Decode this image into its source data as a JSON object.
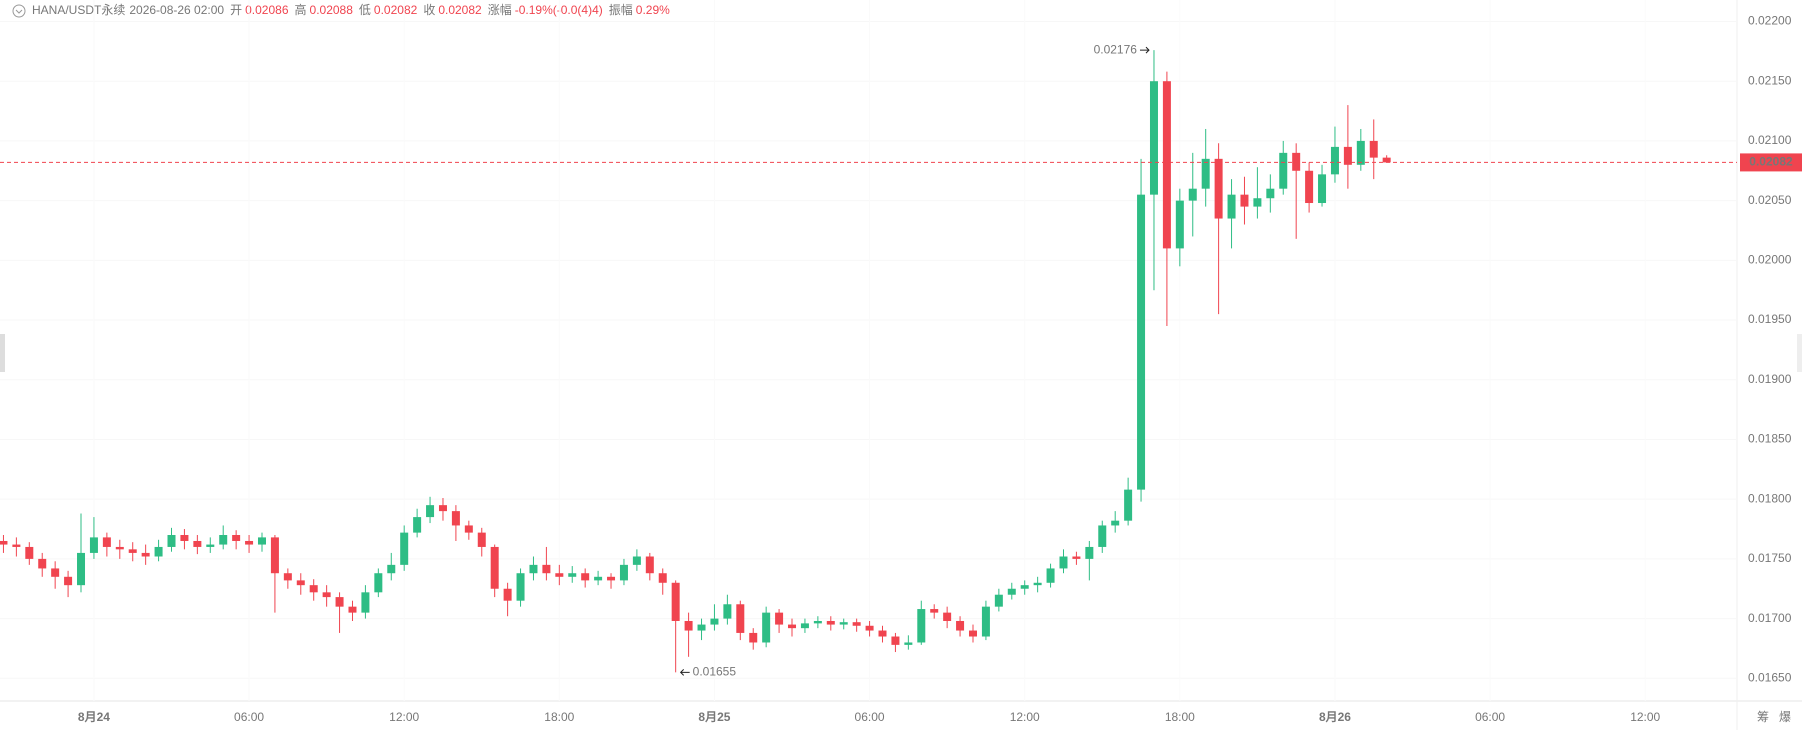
{
  "chart_data": {
    "type": "candlestick",
    "header": {
      "symbol": "HANA/USDT永续",
      "time": "2026-08-26 02:00",
      "fields": [
        {
          "label": "开",
          "value": "0.02086"
        },
        {
          "label": "高",
          "value": "0.02088"
        },
        {
          "label": "低",
          "value": "0.02082"
        },
        {
          "label": "收",
          "value": "0.02082"
        },
        {
          "label": "涨幅",
          "value": "-0.19%(-0.0(4)4)"
        },
        {
          "label": "振幅",
          "value": "0.29%"
        }
      ]
    },
    "high_label": "0.02176",
    "low_label": "0.01655",
    "last_price_label": "0.02082",
    "corner_icons": [
      "筹",
      "爆"
    ],
    "up_color": "#2ebd85",
    "down_color": "#f0444f",
    "xlim": [
      "2026-08-23 20:22",
      "2026-08-26 15:33"
    ],
    "xticks": [
      {
        "value": "2026-08-24 00:00",
        "label": "8月24"
      },
      {
        "value": "2026-08-24 06:00",
        "label": "06:00"
      },
      {
        "value": "2026-08-24 12:00",
        "label": "12:00"
      },
      {
        "value": "2026-08-24 18:00",
        "label": "18:00"
      },
      {
        "value": "2026-08-25 00:00",
        "label": "8月25"
      },
      {
        "value": "2026-08-25 06:00",
        "label": "06:00"
      },
      {
        "value": "2026-08-25 12:00",
        "label": "12:00"
      },
      {
        "value": "2026-08-25 18:00",
        "label": "18:00"
      },
      {
        "value": "2026-08-26 00:00",
        "label": "8月26"
      },
      {
        "value": "2026-08-26 06:00",
        "label": "06:00"
      },
      {
        "value": "2026-08-26 12:00",
        "label": "12:00"
      }
    ],
    "ylim": [
      0.01631,
      0.02218
    ],
    "yticks": [
      {
        "value": 0.0165,
        "label": "0.01650"
      },
      {
        "value": 0.017,
        "label": "0.01700"
      },
      {
        "value": 0.0175,
        "label": "0.01750"
      },
      {
        "value": 0.018,
        "label": "0.01800"
      },
      {
        "value": 0.0185,
        "label": "0.01850"
      },
      {
        "value": 0.019,
        "label": "0.01900"
      },
      {
        "value": 0.0195,
        "label": "0.01950"
      },
      {
        "value": 0.02,
        "label": "0.02000"
      },
      {
        "value": 0.0205,
        "label": "0.02050"
      },
      {
        "value": 0.021,
        "label": "0.02100"
      },
      {
        "value": 0.0215,
        "label": "0.02150"
      },
      {
        "value": 0.022,
        "label": "0.02200"
      }
    ],
    "grid": true,
    "x": [
      "2026-08-23 20:30",
      "2026-08-23 21:00",
      "2026-08-23 21:30",
      "2026-08-23 22:00",
      "2026-08-23 22:30",
      "2026-08-23 23:00",
      "2026-08-23 23:30",
      "2026-08-24 00:00",
      "2026-08-24 00:30",
      "2026-08-24 01:00",
      "2026-08-24 01:30",
      "2026-08-24 02:00",
      "2026-08-24 02:30",
      "2026-08-24 03:00",
      "2026-08-24 03:30",
      "2026-08-24 04:00",
      "2026-08-24 04:30",
      "2026-08-24 05:00",
      "2026-08-24 05:30",
      "2026-08-24 06:00",
      "2026-08-24 06:30",
      "2026-08-24 07:00",
      "2026-08-24 07:30",
      "2026-08-24 08:00",
      "2026-08-24 08:30",
      "2026-08-24 09:00",
      "2026-08-24 09:30",
      "2026-08-24 10:00",
      "2026-08-24 10:30",
      "2026-08-24 11:00",
      "2026-08-24 11:30",
      "2026-08-24 12:00",
      "2026-08-24 12:30",
      "2026-08-24 13:00",
      "2026-08-24 13:30",
      "2026-08-24 14:00",
      "2026-08-24 14:30",
      "2026-08-24 15:00",
      "2026-08-24 15:30",
      "2026-08-24 16:00",
      "2026-08-24 16:30",
      "2026-08-24 17:00",
      "2026-08-24 17:30",
      "2026-08-24 18:00",
      "2026-08-24 18:30",
      "2026-08-24 19:00",
      "2026-08-24 19:30",
      "2026-08-24 20:00",
      "2026-08-24 20:30",
      "2026-08-24 21:00",
      "2026-08-24 21:30",
      "2026-08-24 22:00",
      "2026-08-24 22:30",
      "2026-08-24 23:00",
      "2026-08-24 23:30",
      "2026-08-25 00:00",
      "2026-08-25 00:30",
      "2026-08-25 01:00",
      "2026-08-25 01:30",
      "2026-08-25 02:00",
      "2026-08-25 02:30",
      "2026-08-25 03:00",
      "2026-08-25 03:30",
      "2026-08-25 04:00",
      "2026-08-25 04:30",
      "2026-08-25 05:00",
      "2026-08-25 05:30",
      "2026-08-25 06:00",
      "2026-08-25 06:30",
      "2026-08-25 07:00",
      "2026-08-25 07:30",
      "2026-08-25 08:00",
      "2026-08-25 08:30",
      "2026-08-25 09:00",
      "2026-08-25 09:30",
      "2026-08-25 10:00",
      "2026-08-25 10:30",
      "2026-08-25 11:00",
      "2026-08-25 11:30",
      "2026-08-25 12:00",
      "2026-08-25 12:30",
      "2026-08-25 13:00",
      "2026-08-25 13:30",
      "2026-08-25 14:00",
      "2026-08-25 14:30",
      "2026-08-25 15:00",
      "2026-08-25 15:30",
      "2026-08-25 16:00",
      "2026-08-25 16:30",
      "2026-08-25 17:00",
      "2026-08-25 17:30",
      "2026-08-25 18:00",
      "2026-08-25 18:30",
      "2026-08-25 19:00",
      "2026-08-25 19:30",
      "2026-08-25 20:00",
      "2026-08-25 20:30",
      "2026-08-25 21:00",
      "2026-08-25 21:30",
      "2026-08-25 22:00",
      "2026-08-25 22:30",
      "2026-08-25 23:00",
      "2026-08-25 23:30",
      "2026-08-26 00:00",
      "2026-08-26 00:30",
      "2026-08-26 01:00",
      "2026-08-26 01:30",
      "2026-08-26 02:00"
    ],
    "open": [
      0.01765,
      0.01762,
      0.0176,
      0.0175,
      0.01742,
      0.01735,
      0.01728,
      0.01755,
      0.01768,
      0.0176,
      0.01758,
      0.01755,
      0.01752,
      0.0176,
      0.0177,
      0.01765,
      0.0176,
      0.01762,
      0.0177,
      0.01765,
      0.01762,
      0.01768,
      0.01738,
      0.01732,
      0.01728,
      0.01722,
      0.01718,
      0.0171,
      0.01705,
      0.01722,
      0.01738,
      0.01745,
      0.01772,
      0.01785,
      0.01795,
      0.0179,
      0.01778,
      0.01772,
      0.0176,
      0.01725,
      0.01715,
      0.01738,
      0.01745,
      0.01738,
      0.01735,
      0.01738,
      0.01732,
      0.01735,
      0.01732,
      0.01745,
      0.01752,
      0.01738,
      0.0173,
      0.01698,
      0.0169,
      0.01695,
      0.017,
      0.01712,
      0.01688,
      0.0168,
      0.01705,
      0.01695,
      0.01692,
      0.01696,
      0.01698,
      0.01695,
      0.01697,
      0.01694,
      0.0169,
      0.01685,
      0.01678,
      0.0168,
      0.01708,
      0.01705,
      0.01698,
      0.0169,
      0.01685,
      0.0171,
      0.0172,
      0.01725,
      0.01728,
      0.0173,
      0.01742,
      0.01752,
      0.0175,
      0.0176,
      0.01778,
      0.01782,
      0.01808,
      0.02055,
      0.0215,
      0.0201,
      0.0205,
      0.0206,
      0.02085,
      0.02035,
      0.02055,
      0.02045,
      0.02052,
      0.0206,
      0.0209,
      0.02075,
      0.02048,
      0.02072,
      0.02095,
      0.0208,
      0.021,
      0.02086
    ],
    "high": [
      0.0177,
      0.01768,
      0.01764,
      0.01755,
      0.01748,
      0.0174,
      0.01788,
      0.01785,
      0.01772,
      0.01766,
      0.01764,
      0.01762,
      0.01766,
      0.01776,
      0.01775,
      0.0177,
      0.01768,
      0.01778,
      0.01774,
      0.0177,
      0.01772,
      0.0177,
      0.01742,
      0.01738,
      0.01733,
      0.01728,
      0.01722,
      0.01715,
      0.01728,
      0.01742,
      0.01755,
      0.01778,
      0.01792,
      0.01802,
      0.01801,
      0.01795,
      0.01782,
      0.01776,
      0.01762,
      0.0173,
      0.01742,
      0.01752,
      0.0176,
      0.01745,
      0.01744,
      0.01742,
      0.0174,
      0.01738,
      0.0175,
      0.01758,
      0.01755,
      0.01742,
      0.01732,
      0.01705,
      0.017,
      0.01712,
      0.0172,
      0.01715,
      0.01692,
      0.0171,
      0.01708,
      0.017,
      0.017,
      0.01702,
      0.01702,
      0.017,
      0.017,
      0.01698,
      0.01694,
      0.01688,
      0.01686,
      0.01715,
      0.01712,
      0.0171,
      0.01702,
      0.01695,
      0.01715,
      0.01725,
      0.0173,
      0.01732,
      0.01735,
      0.01746,
      0.01758,
      0.01756,
      0.01765,
      0.01782,
      0.0179,
      0.01818,
      0.02085,
      0.02176,
      0.02158,
      0.0206,
      0.0209,
      0.0211,
      0.02098,
      0.02068,
      0.0207,
      0.02078,
      0.02072,
      0.021,
      0.02098,
      0.02082,
      0.0208,
      0.02112,
      0.0213,
      0.0211,
      0.02118,
      0.02088
    ],
    "low": [
      0.01755,
      0.01752,
      0.01745,
      0.01735,
      0.01725,
      0.01718,
      0.01722,
      0.0175,
      0.01752,
      0.0175,
      0.01748,
      0.01745,
      0.01748,
      0.01756,
      0.01758,
      0.01754,
      0.01755,
      0.01758,
      0.01758,
      0.01755,
      0.01756,
      0.01705,
      0.01725,
      0.0172,
      0.01715,
      0.0171,
      0.01688,
      0.01698,
      0.017,
      0.01718,
      0.01732,
      0.0174,
      0.01768,
      0.0178,
      0.01782,
      0.01765,
      0.01766,
      0.01752,
      0.01718,
      0.01702,
      0.0171,
      0.01732,
      0.01732,
      0.01728,
      0.0173,
      0.01726,
      0.01728,
      0.01725,
      0.01728,
      0.0174,
      0.01732,
      0.0172,
      0.01655,
      0.01668,
      0.01682,
      0.0169,
      0.01695,
      0.01682,
      0.01674,
      0.01676,
      0.01688,
      0.01685,
      0.01688,
      0.01692,
      0.0169,
      0.01691,
      0.01689,
      0.01685,
      0.0168,
      0.01672,
      0.01674,
      0.01678,
      0.017,
      0.01692,
      0.01685,
      0.0168,
      0.01682,
      0.01706,
      0.01716,
      0.0172,
      0.01722,
      0.01726,
      0.01738,
      0.01745,
      0.01732,
      0.01755,
      0.01772,
      0.01778,
      0.01798,
      0.01975,
      0.01945,
      0.01995,
      0.0202,
      0.02045,
      0.01955,
      0.0201,
      0.0203,
      0.02035,
      0.0204,
      0.02055,
      0.02018,
      0.0204,
      0.02045,
      0.02065,
      0.0206,
      0.02075,
      0.02068,
      0.02082
    ],
    "close": [
      0.01762,
      0.0176,
      0.0175,
      0.01742,
      0.01735,
      0.01728,
      0.01755,
      0.01768,
      0.0176,
      0.01758,
      0.01755,
      0.01752,
      0.0176,
      0.0177,
      0.01765,
      0.0176,
      0.01762,
      0.0177,
      0.01765,
      0.01762,
      0.01768,
      0.01738,
      0.01732,
      0.01728,
      0.01722,
      0.01718,
      0.0171,
      0.01705,
      0.01722,
      0.01738,
      0.01745,
      0.01772,
      0.01785,
      0.01795,
      0.0179,
      0.01778,
      0.01772,
      0.0176,
      0.01725,
      0.01715,
      0.01738,
      0.01745,
      0.01738,
      0.01735,
      0.01738,
      0.01732,
      0.01735,
      0.01732,
      0.01745,
      0.01752,
      0.01738,
      0.0173,
      0.01698,
      0.0169,
      0.01695,
      0.017,
      0.01712,
      0.01688,
      0.0168,
      0.01705,
      0.01695,
      0.01692,
      0.01696,
      0.01698,
      0.01695,
      0.01697,
      0.01694,
      0.0169,
      0.01685,
      0.01678,
      0.0168,
      0.01708,
      0.01705,
      0.01698,
      0.0169,
      0.01685,
      0.0171,
      0.0172,
      0.01725,
      0.01728,
      0.0173,
      0.01742,
      0.01752,
      0.0175,
      0.0176,
      0.01778,
      0.01782,
      0.01808,
      0.02055,
      0.0215,
      0.0201,
      0.0205,
      0.0206,
      0.02085,
      0.02035,
      0.02055,
      0.02045,
      0.02052,
      0.0206,
      0.0209,
      0.02075,
      0.02048,
      0.02072,
      0.02095,
      0.0208,
      0.021,
      0.02086,
      0.02082
    ]
  }
}
